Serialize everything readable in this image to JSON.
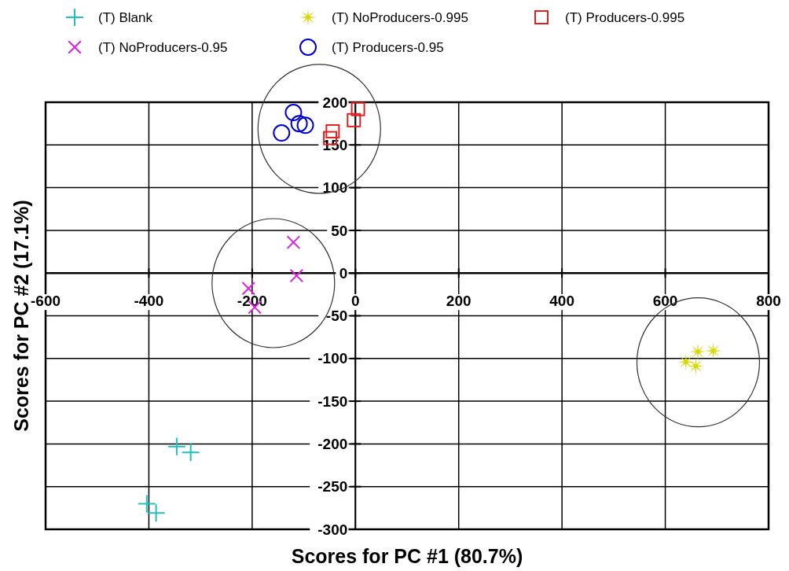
{
  "chart_data": {
    "type": "scatter",
    "xlabel": "Scores for PC #1 (80.7%)",
    "ylabel": "Scores for PC #2 (17.1%)",
    "xlim": [
      -600,
      800
    ],
    "xticks": [
      -600,
      -400,
      -200,
      0,
      200,
      400,
      600,
      800
    ],
    "ylim": [
      -300,
      200
    ],
    "yticks": [
      -300,
      -250,
      -200,
      -150,
      -100,
      -50,
      0,
      50,
      100,
      150,
      200
    ],
    "grid": true,
    "legend": "top",
    "series": [
      {
        "name": "(T) Blank",
        "color": "#20c0c0",
        "marker": "cross",
        "x": [
          -346,
          -319,
          -404,
          -386
        ],
        "values": [
          -203,
          -210,
          -270,
          -281
        ]
      },
      {
        "name": "(T) NoProducers-0.995",
        "color": "#d8d800",
        "marker": "star",
        "x": [
          693,
          663,
          640,
          659
        ],
        "values": [
          -91,
          -92,
          -104,
          -109
        ]
      },
      {
        "name": "(T) Producers-0.995",
        "color": "#e02020",
        "marker": "square",
        "x": [
          5,
          -3,
          -44,
          -49
        ],
        "values": [
          192,
          179,
          166,
          158
        ]
      },
      {
        "name": "(T) NoProducers-0.95",
        "color": "#e020e0",
        "marker": "cross",
        "x": [
          -120,
          -114,
          -207,
          -195
        ],
        "values": [
          36,
          -3,
          -18,
          -40
        ]
      },
      {
        "name": "(T) Producers-0.95",
        "color": "#0000cc",
        "marker": "circle",
        "x": [
          -120,
          -109,
          -97,
          -143
        ],
        "values": [
          188,
          175,
          173,
          164
        ]
      }
    ]
  }
}
